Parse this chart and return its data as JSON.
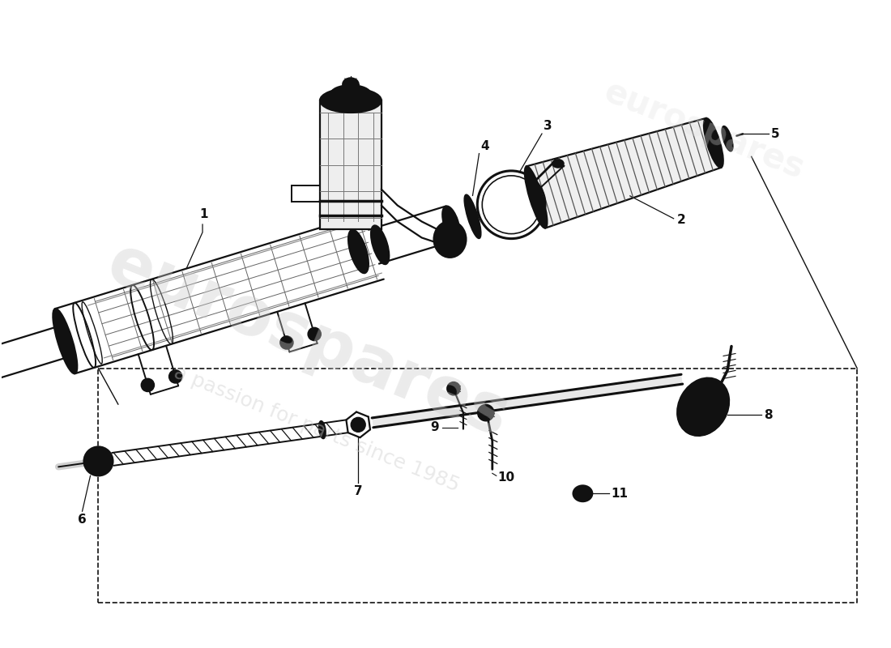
{
  "bg_color": "#ffffff",
  "line_color": "#111111",
  "watermark1": "eurospares",
  "watermark2": "a passion for parts since 1985",
  "wm_color": "#cccccc",
  "figsize": [
    11.0,
    8.0
  ],
  "dpi": 100,
  "tilt_deg": 17
}
